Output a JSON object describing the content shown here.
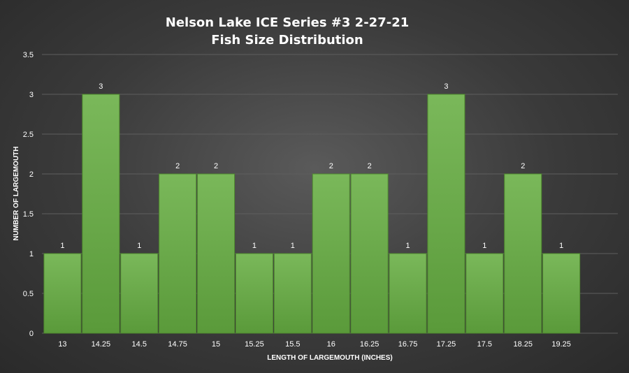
{
  "chart_data": {
    "type": "bar",
    "title_line1": "Nelson Lake ICE Series #3 2-27-21",
    "title_line2": "Fish Size Distribution",
    "xlabel": "LENGTH OF LARGEMOUTH (INCHES)",
    "ylabel": "NUMBER OF LARGEMOUTH",
    "categories": [
      "13",
      "14.25",
      "14.5",
      "14.75",
      "15",
      "15.25",
      "15.5",
      "16",
      "16.25",
      "16.75",
      "17.25",
      "17.5",
      "18.25",
      "19.25"
    ],
    "values": [
      1,
      3,
      1,
      2,
      2,
      1,
      1,
      2,
      2,
      1,
      3,
      1,
      2,
      1
    ],
    "ylim": [
      0,
      3.5
    ],
    "yticks": [
      "0",
      "0.5",
      "1",
      "1.5",
      "2",
      "2.5",
      "3",
      "3.5"
    ],
    "grid": true,
    "legend": "none",
    "bar_color": "#6aa84f"
  }
}
